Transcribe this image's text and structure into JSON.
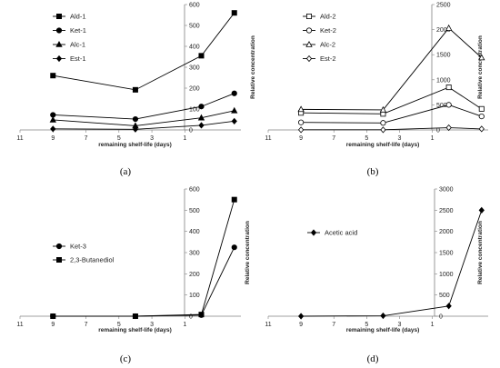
{
  "colors": {
    "axis": "#808080",
    "series": "#000000"
  },
  "chart_data": [
    {
      "id": "a",
      "panel_label": "(a)",
      "type": "line",
      "xlabel": "remaining shelf-life (days)",
      "ylabel": "Relative concentration",
      "xlim": [
        11,
        -2.4
      ],
      "ylim": [
        0,
        600
      ],
      "x_ticks": [
        11,
        9,
        7,
        5,
        3,
        1
      ],
      "y_ticks": [
        0,
        100,
        200,
        300,
        400,
        500,
        600
      ],
      "grid": false,
      "legend_position": "top-left",
      "series": [
        {
          "name": "Ald-1",
          "marker": "square-filled",
          "x": [
            9,
            4,
            0,
            -2
          ],
          "y": [
            260,
            192,
            355,
            560
          ]
        },
        {
          "name": "Ket-1",
          "marker": "circle-filled",
          "x": [
            9,
            4,
            0,
            -2
          ],
          "y": [
            72,
            52,
            112,
            175
          ]
        },
        {
          "name": "Alc-1",
          "marker": "triangle-filled",
          "x": [
            9,
            4,
            0,
            -2
          ],
          "y": [
            48,
            20,
            58,
            92
          ]
        },
        {
          "name": "Est-1",
          "marker": "diamond-filled",
          "x": [
            9,
            4,
            0,
            -2
          ],
          "y": [
            5,
            3,
            22,
            42
          ]
        }
      ]
    },
    {
      "id": "b",
      "panel_label": "(b)",
      "type": "line",
      "xlabel": "remaining shelf-life (days)",
      "ylabel": "Relative concentration",
      "xlim": [
        11,
        -2.4
      ],
      "ylim": [
        0,
        2500
      ],
      "x_ticks": [
        11,
        9,
        7,
        5,
        3,
        1
      ],
      "y_ticks": [
        0,
        500,
        1000,
        1500,
        2000,
        2500
      ],
      "grid": false,
      "legend_position": "top-left",
      "series": [
        {
          "name": "Ald-2",
          "marker": "square-open",
          "x": [
            9,
            4,
            0,
            -2
          ],
          "y": [
            340,
            320,
            850,
            420
          ]
        },
        {
          "name": "Ket-2",
          "marker": "circle-open",
          "x": [
            9,
            4,
            0,
            -2
          ],
          "y": [
            150,
            140,
            500,
            270
          ]
        },
        {
          "name": "Alc-2",
          "marker": "triangle-open",
          "x": [
            9,
            4,
            0,
            -2
          ],
          "y": [
            410,
            400,
            2030,
            1440
          ]
        },
        {
          "name": "Est-2",
          "marker": "diamond-open",
          "x": [
            9,
            4,
            0,
            -2
          ],
          "y": [
            3,
            3,
            45,
            20
          ]
        }
      ]
    },
    {
      "id": "c",
      "panel_label": "(c)",
      "type": "line",
      "xlabel": "remaining shelf-life (days)",
      "ylabel": "",
      "xlim": [
        11,
        -2.4
      ],
      "ylim": [
        0,
        600
      ],
      "x_ticks": [
        11,
        9,
        7,
        5,
        3,
        1
      ],
      "y_ticks": [
        0,
        100,
        200,
        300,
        400,
        500,
        600
      ],
      "grid": false,
      "legend_position": "center-left",
      "series": [
        {
          "name": "Ket-3",
          "marker": "circle-filled",
          "x": [
            9,
            4,
            0,
            -2
          ],
          "y": [
            0,
            0,
            5,
            325
          ]
        },
        {
          "name": "2,3-Butanediol",
          "marker": "square-filled",
          "x": [
            9,
            4,
            0,
            -2
          ],
          "y": [
            0,
            0,
            8,
            550
          ]
        }
      ]
    },
    {
      "id": "d",
      "panel_label": "(d)",
      "type": "line",
      "xlabel": "remaining shelf-life (days)",
      "ylabel": "Relative concentration",
      "ylabel_left": "Relative concentration",
      "xlim": [
        11,
        -2.4
      ],
      "ylim": [
        0,
        3000
      ],
      "x_ticks": [
        11,
        9,
        7,
        5,
        3,
        1
      ],
      "y_ticks": [
        0,
        500,
        1000,
        1500,
        2000,
        2500,
        3000
      ],
      "grid": false,
      "legend_position": "top-left",
      "series": [
        {
          "name": "Acetic acid",
          "marker": "diamond-filled",
          "x": [
            9,
            4,
            0,
            -2
          ],
          "y": [
            0,
            10,
            240,
            2500
          ]
        }
      ]
    }
  ]
}
